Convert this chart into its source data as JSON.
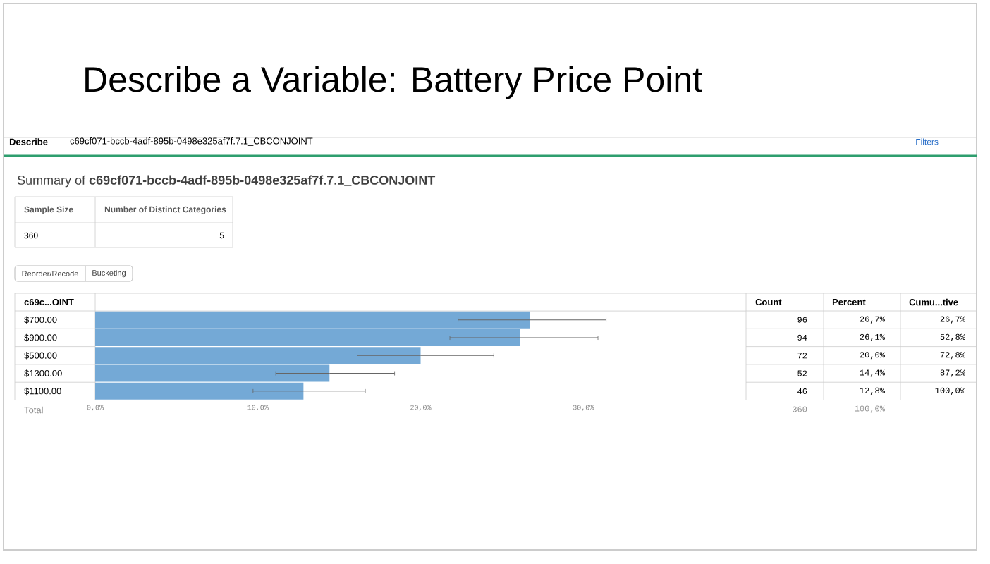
{
  "chart_data": {
    "type": "bar",
    "orientation": "horizontal",
    "title": "Describe a Variable: Battery Price Point",
    "ylabel": "c69c...OINT",
    "categories": [
      "$700.00",
      "$900.00",
      "$500.00",
      "$1300.00",
      "$1100.00"
    ],
    "values": [
      26.7,
      26.1,
      20.0,
      14.4,
      12.8
    ],
    "value_labels": [
      "26,7%",
      "26,1%",
      "20,0%",
      "14,4%",
      "12,8%"
    ],
    "errors": [
      [
        22.3,
        31.4
      ],
      [
        21.8,
        30.9
      ],
      [
        16.1,
        24.5
      ],
      [
        11.1,
        18.4
      ],
      [
        9.7,
        16.6
      ]
    ],
    "color": "#74a9d6",
    "xlim": [
      0,
      40
    ],
    "xticks": [
      {
        "value": 0,
        "label": "0,0%"
      },
      {
        "value": 10,
        "label": "10,0%"
      },
      {
        "value": 20,
        "label": "20,0%"
      },
      {
        "value": 30,
        "label": "30,0%"
      }
    ],
    "annotations": [
      "Describe",
      "c69cf071-bccb-4adf-895b-0498e325af7f.7.1_CBCONJOINT",
      "Summary of **c69cf071-bccb-4adf-895b-0498e325af7f.7.1_CBCONJOINT**",
      "Sample Size",
      "Number of Distinct Categories",
      "360",
      "5",
      "Reorder/Recode",
      "Bucketing",
      "Filters",
      "Count",
      "Percent",
      "Cumu...tive",
      "96",
      "94",
      "72",
      "52",
      "46",
      "26,7%",
      "52,8%",
      "72,8%",
      "87,2%",
      "100,0%",
      "Total",
      "360",
      "100,0%"
    ]
  }
}
